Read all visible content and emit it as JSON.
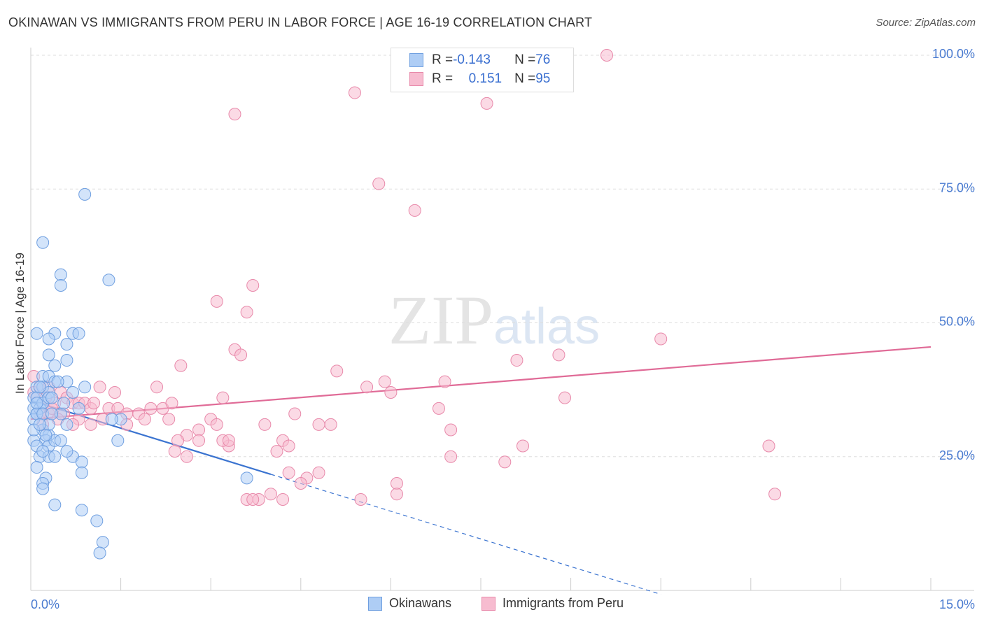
{
  "header": {
    "title": "OKINAWAN VS IMMIGRANTS FROM PERU IN LABOR FORCE | AGE 16-19 CORRELATION CHART",
    "source": "Source: ZipAtlas.com"
  },
  "watermark": {
    "zip": "ZIP",
    "atlas": "atlas"
  },
  "legend_top": {
    "rows": [
      {
        "r_label": "R = ",
        "r_value": "-0.143",
        "n_label": "N = ",
        "n_value": "76"
      },
      {
        "r_label": "R = ",
        "r_value": "0.151",
        "n_label": "N = ",
        "n_value": "95"
      }
    ]
  },
  "legend_bottom": {
    "series1": "Okinawans",
    "series2": "Immigrants from Peru"
  },
  "colors": {
    "blue_fill": "#aecdf5",
    "blue_stroke": "#6f9fe0",
    "blue_line": "#3a73d0",
    "pink_fill": "#f7bcd0",
    "pink_stroke": "#e889aa",
    "pink_line": "#e06b97",
    "grid": "#dddddd",
    "tick_text": "#4a7bd0"
  },
  "chart_data": {
    "type": "scatter",
    "title": "OKINAWAN VS IMMIGRANTS FROM PERU IN LABOR FORCE | AGE 16-19 CORRELATION CHART",
    "xlabel": "",
    "ylabel": "In Labor Force | Age 16-19",
    "xlim": [
      0,
      15
    ],
    "ylim": [
      0,
      100
    ],
    "x_tick_labels": [
      "0.0%",
      "15.0%"
    ],
    "y_ticks": [
      25,
      50,
      75,
      100
    ],
    "y_tick_labels": [
      "25.0%",
      "50.0%",
      "75.0%",
      "100.0%"
    ],
    "series": [
      {
        "name": "Okinawans",
        "r": -0.143,
        "n": 76,
        "trend": {
          "x0": 0,
          "y0": 35.5,
          "x_solid_end": 4.0,
          "x_dash_end": 10.5,
          "slope": -3.45
        },
        "points": [
          [
            0.9,
            74
          ],
          [
            0.2,
            65
          ],
          [
            0.5,
            59
          ],
          [
            0.5,
            57
          ],
          [
            1.3,
            58
          ],
          [
            0.1,
            48
          ],
          [
            0.4,
            48
          ],
          [
            0.7,
            48
          ],
          [
            0.8,
            48
          ],
          [
            0.6,
            46
          ],
          [
            0.3,
            47
          ],
          [
            0.3,
            44
          ],
          [
            0.4,
            42
          ],
          [
            0.6,
            43
          ],
          [
            0.2,
            40
          ],
          [
            0.3,
            40
          ],
          [
            0.1,
            38
          ],
          [
            0.2,
            38
          ],
          [
            0.4,
            39
          ],
          [
            0.6,
            39
          ],
          [
            0.9,
            38
          ],
          [
            0.05,
            36
          ],
          [
            0.1,
            36
          ],
          [
            0.2,
            35
          ],
          [
            0.3,
            37
          ],
          [
            0.05,
            34
          ],
          [
            0.1,
            33
          ],
          [
            0.15,
            34
          ],
          [
            0.2,
            35
          ],
          [
            0.05,
            32
          ],
          [
            0.1,
            33
          ],
          [
            0.2,
            33
          ],
          [
            0.3,
            36
          ],
          [
            0.5,
            33
          ],
          [
            0.6,
            31
          ],
          [
            0.8,
            34
          ],
          [
            0.2,
            30
          ],
          [
            0.3,
            29
          ],
          [
            0.25,
            28
          ],
          [
            0.3,
            27
          ],
          [
            0.4,
            28
          ],
          [
            0.5,
            28
          ],
          [
            0.05,
            28
          ],
          [
            0.1,
            27
          ],
          [
            0.15,
            25
          ],
          [
            0.3,
            25
          ],
          [
            0.4,
            25
          ],
          [
            0.7,
            25
          ],
          [
            0.85,
            24
          ],
          [
            0.1,
            23
          ],
          [
            0.25,
            21
          ],
          [
            0.2,
            20
          ],
          [
            0.85,
            22
          ],
          [
            0.2,
            19
          ],
          [
            0.4,
            16
          ],
          [
            0.85,
            15
          ],
          [
            1.1,
            13
          ],
          [
            1.2,
            9
          ],
          [
            1.15,
            7
          ],
          [
            1.5,
            32
          ],
          [
            1.45,
            28
          ],
          [
            3.6,
            21
          ],
          [
            1.35,
            32
          ],
          [
            0.6,
            26
          ],
          [
            0.35,
            36
          ],
          [
            0.15,
            38
          ],
          [
            0.3,
            31
          ],
          [
            0.45,
            39
          ],
          [
            0.1,
            35
          ],
          [
            0.25,
            29
          ],
          [
            0.55,
            35
          ],
          [
            0.2,
            26
          ],
          [
            0.05,
            30
          ],
          [
            0.35,
            33
          ],
          [
            0.7,
            37
          ],
          [
            0.15,
            31
          ]
        ]
      },
      {
        "name": "Immigrants from Peru",
        "r": 0.151,
        "n": 95,
        "trend": {
          "x0": 0,
          "y0": 32,
          "x1": 15,
          "y1": 45.5
        },
        "points": [
          [
            9.6,
            100
          ],
          [
            5.4,
            93
          ],
          [
            7.6,
            91
          ],
          [
            3.4,
            89
          ],
          [
            5.8,
            76
          ],
          [
            6.4,
            71
          ],
          [
            3.7,
            57
          ],
          [
            3.1,
            54
          ],
          [
            3.6,
            52
          ],
          [
            10.5,
            47
          ],
          [
            3.4,
            45
          ],
          [
            3.5,
            44
          ],
          [
            8.8,
            44
          ],
          [
            8.1,
            43
          ],
          [
            2.5,
            42
          ],
          [
            5.1,
            41
          ],
          [
            5.9,
            39
          ],
          [
            6.9,
            39
          ],
          [
            5.6,
            38
          ],
          [
            6.0,
            37
          ],
          [
            8.9,
            36
          ],
          [
            3.2,
            36
          ],
          [
            2.1,
            38
          ],
          [
            1.15,
            38
          ],
          [
            0.05,
            40
          ],
          [
            0.15,
            38
          ],
          [
            0.3,
            38
          ],
          [
            0.5,
            37
          ],
          [
            0.6,
            36
          ],
          [
            0.7,
            35
          ],
          [
            0.8,
            35
          ],
          [
            0.9,
            35
          ],
          [
            1.0,
            34
          ],
          [
            1.05,
            35
          ],
          [
            1.3,
            34
          ],
          [
            1.45,
            34
          ],
          [
            1.6,
            33
          ],
          [
            1.8,
            33
          ],
          [
            1.9,
            32
          ],
          [
            2.0,
            34
          ],
          [
            2.2,
            34
          ],
          [
            2.35,
            35
          ],
          [
            2.3,
            32
          ],
          [
            1.6,
            31
          ],
          [
            1.2,
            32
          ],
          [
            1.0,
            31
          ],
          [
            0.8,
            32
          ],
          [
            0.7,
            31
          ],
          [
            0.55,
            33
          ],
          [
            0.4,
            35
          ],
          [
            0.3,
            33
          ],
          [
            0.2,
            31
          ],
          [
            6.8,
            34
          ],
          [
            4.4,
            33
          ],
          [
            5.0,
            31
          ],
          [
            4.8,
            31
          ],
          [
            3.9,
            31
          ],
          [
            3.0,
            32
          ],
          [
            3.1,
            31
          ],
          [
            2.8,
            30
          ],
          [
            2.6,
            29
          ],
          [
            2.45,
            28
          ],
          [
            2.8,
            28
          ],
          [
            3.3,
            27
          ],
          [
            3.2,
            28
          ],
          [
            4.2,
            28
          ],
          [
            4.3,
            27
          ],
          [
            7.0,
            30
          ],
          [
            8.2,
            27
          ],
          [
            12.3,
            27
          ],
          [
            2.4,
            26
          ],
          [
            2.6,
            25
          ],
          [
            4.1,
            26
          ],
          [
            7.0,
            25
          ],
          [
            7.9,
            24
          ],
          [
            4.3,
            22
          ],
          [
            4.8,
            22
          ],
          [
            4.6,
            21
          ],
          [
            4.5,
            20
          ],
          [
            6.1,
            20
          ],
          [
            4.0,
            18
          ],
          [
            3.8,
            17
          ],
          [
            3.6,
            17
          ],
          [
            3.7,
            17
          ],
          [
            4.2,
            17
          ],
          [
            5.5,
            17
          ],
          [
            6.1,
            18
          ],
          [
            12.4,
            18
          ],
          [
            3.3,
            28
          ],
          [
            1.4,
            37
          ],
          [
            0.25,
            36
          ],
          [
            0.35,
            34
          ],
          [
            0.45,
            32
          ],
          [
            0.05,
            37
          ],
          [
            0.15,
            33
          ]
        ]
      }
    ]
  }
}
